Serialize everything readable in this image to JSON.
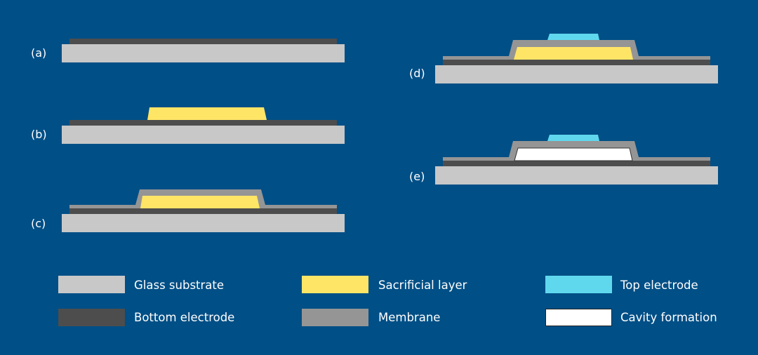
{
  "colors": {
    "background": "#004f86",
    "glass_substrate": "#c8c8c8",
    "bottom_electrode": "#4d4d4d",
    "sacrificial_layer": "#ffe566",
    "membrane": "#959595",
    "top_electrode": "#5fd8ee",
    "cavity": "#ffffff"
  },
  "steps": [
    {
      "label": "(a)"
    },
    {
      "label": "(b)"
    },
    {
      "label": "(c)"
    },
    {
      "label": "(d)"
    },
    {
      "label": "(e)"
    }
  ],
  "legend": [
    {
      "label": "Glass substrate",
      "color": "#c8c8c8"
    },
    {
      "label": "Bottom electrode",
      "color": "#4d4d4d"
    },
    {
      "label": "Sacrificial layer",
      "color": "#ffe566"
    },
    {
      "label": "Membrane",
      "color": "#959595"
    },
    {
      "label": "Top electrode",
      "color": "#5fd8ee"
    },
    {
      "label": "Cavity formation",
      "color": "#ffffff"
    }
  ]
}
